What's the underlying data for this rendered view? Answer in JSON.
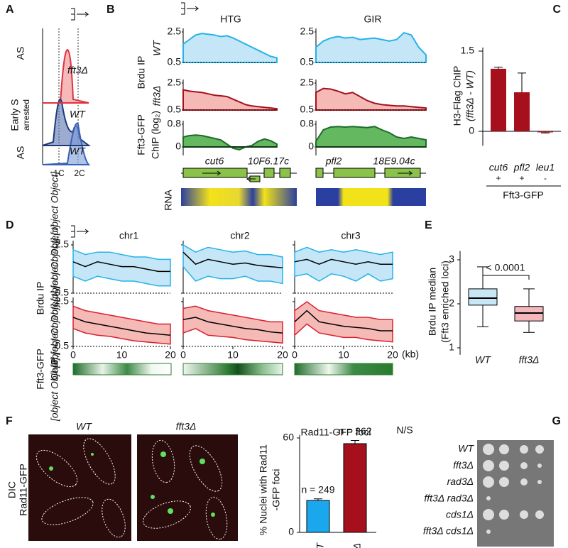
{
  "A": {
    "letter": "A",
    "row_labels": [
      "AS",
      "Early S",
      "arrested",
      "AS"
    ],
    "curve_labels": [
      "fft3Δ",
      "WT",
      "WT"
    ],
    "x_labels": [
      "1C",
      "2C"
    ]
  },
  "B": {
    "letter": "B",
    "columns": [
      "HTG",
      "GIR"
    ],
    "brdu": "Brdu IP",
    "wt": "WT",
    "fft3": "fft3Δ",
    "chip_a": "Fft3-GFP",
    "chip_b": "ChIP (log₂)",
    "rna": "RNA",
    "genes": [
      "cut6",
      "10F6.17c",
      "pfl2",
      "18E9.04c"
    ],
    "rows": [
      {
        "ylim": [
          0.5,
          2.5
        ],
        "yticks": [
          0.5,
          2.5
        ]
      },
      {
        "ylim": [
          0.5,
          2.5
        ],
        "yticks": [
          0.5,
          2.5
        ]
      },
      {
        "ylim": [
          -0.15,
          0.8
        ],
        "yticks": [
          0,
          0.8
        ]
      }
    ],
    "traces": [
      {
        "wt": [
          1.7,
          2.0,
          2.3,
          2.4,
          2.35,
          2.3,
          2.2,
          2.25,
          2.1,
          1.9,
          1.7,
          1.5,
          1.3,
          1.1,
          0.9,
          0.8
        ],
        "fft3": [
          2.0,
          1.9,
          1.85,
          1.8,
          1.7,
          1.6,
          1.55,
          1.5,
          1.3,
          1.1,
          0.9,
          0.8,
          0.75,
          0.7,
          0.65,
          0.6
        ],
        "chip": [
          0.35,
          0.4,
          0.42,
          0.4,
          0.35,
          0.3,
          0.25,
          0.1,
          -0.05,
          -0.1,
          0.0,
          0.05,
          0.2,
          0.28,
          0.22,
          0.1
        ]
      },
      {
        "wt": [
          1.5,
          1.9,
          2.1,
          2.2,
          2.1,
          2.15,
          2.0,
          2.05,
          2.1,
          2.0,
          1.9,
          2.0,
          2.45,
          2.3,
          1.5,
          1.0
        ],
        "fft3": [
          1.8,
          2.1,
          2.05,
          1.9,
          1.7,
          1.8,
          1.5,
          1.2,
          1.0,
          0.9,
          0.85,
          0.8,
          0.8,
          0.75,
          0.7,
          0.65
        ],
        "chip": [
          0.2,
          0.6,
          0.7,
          0.72,
          0.7,
          0.72,
          0.7,
          0.68,
          0.72,
          0.6,
          0.5,
          0.35,
          0.3,
          0.35,
          0.3,
          0.25
        ]
      }
    ]
  },
  "C": {
    "letter": "C",
    "ylabel_a": "H3-Flag ChIP",
    "ylabel_b": "(fft3Δ - WT)",
    "ylim": [
      -0.27,
      1.5
    ],
    "yticks": [
      0,
      1.5
    ],
    "categories": [
      "cut6",
      "pfl2",
      "leu1"
    ],
    "values": [
      1.17,
      0.73,
      -0.02
    ],
    "errors": [
      0.03,
      0.36,
      0.01
    ],
    "signs": [
      "+",
      "+",
      "-"
    ],
    "group": "Fft3-GFP",
    "color": "#a5101c"
  },
  "D": {
    "letter": "D",
    "columns": [
      "chr1",
      "chr2",
      "chr3"
    ],
    "brdu": "Brdu IP",
    "wt": [
      {
        "mean": [
          1.8,
          1.6,
          1.8,
          1.7,
          1.6,
          1.6,
          1.5,
          1.4,
          1.4
        ],
        "upper": [
          2.3,
          2.1,
          2.2,
          2.2,
          2.1,
          2.0,
          2.0,
          1.9,
          1.9
        ],
        "lower": [
          1.2,
          1.0,
          1.2,
          1.1,
          1.0,
          1.0,
          0.9,
          0.8,
          0.8
        ]
      },
      {
        "mean": [
          2.2,
          1.7,
          1.9,
          1.8,
          1.7,
          1.75,
          1.65,
          1.6,
          1.55
        ],
        "upper": [
          2.5,
          2.2,
          2.4,
          2.3,
          2.2,
          2.25,
          2.1,
          2.1,
          2.0
        ],
        "lower": [
          1.6,
          1.0,
          1.2,
          1.1,
          1.1,
          1.2,
          1.0,
          1.0,
          0.9
        ]
      },
      {
        "mean": [
          1.8,
          1.9,
          1.7,
          1.9,
          1.8,
          1.7,
          1.8,
          1.7,
          1.7
        ],
        "upper": [
          2.2,
          2.4,
          2.2,
          2.3,
          2.2,
          2.3,
          2.2,
          2.1,
          2.2
        ],
        "lower": [
          1.2,
          1.3,
          1.0,
          1.3,
          1.2,
          1.0,
          1.3,
          1.0,
          1.1
        ]
      }
    ],
    "fft3": [
      {
        "mean": [
          1.8,
          1.6,
          1.5,
          1.4,
          1.3,
          1.2,
          1.1,
          1.05,
          1.0
        ],
        "upper": [
          2.3,
          2.1,
          2.0,
          1.9,
          1.8,
          1.7,
          1.6,
          1.5,
          1.5
        ],
        "lower": [
          1.3,
          1.1,
          1.0,
          0.95,
          0.85,
          0.75,
          0.7,
          0.65,
          0.6
        ]
      },
      {
        "mean": [
          1.7,
          1.8,
          1.6,
          1.5,
          1.4,
          1.3,
          1.25,
          1.15,
          1.1
        ],
        "upper": [
          2.2,
          2.3,
          2.1,
          2.0,
          1.9,
          1.8,
          1.7,
          1.6,
          1.6
        ],
        "lower": [
          1.1,
          1.3,
          1.0,
          0.95,
          0.9,
          0.8,
          0.75,
          0.7,
          0.65
        ]
      },
      {
        "mean": [
          1.6,
          2.1,
          1.6,
          1.5,
          1.4,
          1.35,
          1.3,
          1.2,
          1.2
        ],
        "upper": [
          2.1,
          2.5,
          2.1,
          2.0,
          1.9,
          1.8,
          1.8,
          1.7,
          1.7
        ],
        "lower": [
          1.0,
          1.5,
          1.1,
          1.0,
          0.9,
          0.9,
          0.8,
          0.75,
          0.7
        ]
      }
    ],
    "chip_a": "Fft3-GFP",
    "chip_b": "ChIP",
    "unit": "(kb)",
    "x": [
      0,
      2.5,
      5,
      7.5,
      10,
      12.5,
      15,
      17.5,
      20
    ],
    "xlim": [
      0,
      20
    ],
    "xticks": [
      0,
      10,
      20
    ],
    "ylim": [
      0.5,
      2.5
    ],
    "yticks": [
      0.5,
      2.5
    ]
  },
  "E": {
    "letter": "E",
    "ylabel_a": "Brdu IP median",
    "ylabel_b": "(Fft3 enriched loci)",
    "ylim": [
      0.84,
      3.2
    ],
    "yticks": [
      1,
      2,
      3
    ],
    "pvalue": "< 0.0001",
    "categories": [
      "WT",
      "fft3Δ"
    ],
    "colors": [
      "#5fb8e6",
      "#e0303c"
    ],
    "boxes": [
      {
        "min": 1.48,
        "q1": 1.97,
        "median": 2.13,
        "q3": 2.34,
        "max": 2.84
      },
      {
        "min": 1.35,
        "q1": 1.61,
        "median": 1.79,
        "q3": 1.94,
        "max": 2.34
      }
    ]
  },
  "F": {
    "letter": "F",
    "images": [
      "WT",
      "fft3Δ"
    ],
    "stain_a": "DIC",
    "stain_b": "Rad11-GFP",
    "title": "Rad11-GFP foci",
    "ylabel_a": "% Nuclei with Rad11",
    "ylabel_b": "-GFP foci",
    "ylim": [
      0,
      62
    ],
    "yticks": [
      0,
      60
    ],
    "categories": [
      "WT",
      "fft3Δ"
    ],
    "values": [
      20.3,
      56.4
    ],
    "errors": [
      1,
      2
    ],
    "value_labels": [
      "n = 249",
      "n = 262"
    ],
    "colors": [
      "#1aa7ee",
      "#a5101c"
    ]
  },
  "G": {
    "letter": "G",
    "title": "N/S",
    "strains": [
      "WT",
      "fft3Δ",
      "rad3Δ",
      "fft3Δ rad3Δ",
      "cds1Δ",
      "fft3Δ cds1Δ"
    ]
  }
}
